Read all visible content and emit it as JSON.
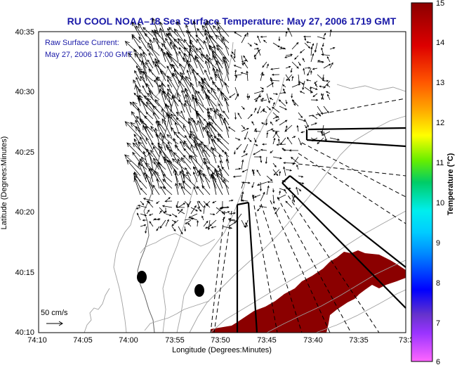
{
  "title": "RU COOL  NOAA–18  Sea Surface Temperature:  May 27, 2006 1719 GMT",
  "annotation": {
    "line1": "Raw Surface Current:",
    "line2": "May 27, 2006 17:00 GMT"
  },
  "x_axis": {
    "label": "Longitude (Degrees:Minutes)",
    "ticks": [
      "74:10",
      "74:05",
      "74:00",
      "73:55",
      "73:50",
      "73:45",
      "73:40",
      "73:35",
      "73:3"
    ]
  },
  "y_axis": {
    "label": "Latitude (Degrees:Minutes)",
    "ticks": [
      "40:35",
      "40:30",
      "40:25",
      "40:20",
      "40:15",
      "40:10"
    ]
  },
  "scale_label": "50 cm/s",
  "colorbar": {
    "label": "Temperature (°C)",
    "ticks": [
      "15",
      "14",
      "13",
      "12",
      "11",
      "10",
      "9",
      "8",
      "7",
      "6"
    ],
    "stops": [
      "#ff66ff",
      "#6633cc",
      "#0000ff",
      "#00aaff",
      "#00eeee",
      "#00cc66",
      "#66ee00",
      "#ffff00",
      "#ffaa00",
      "#ff5500",
      "#dd0000",
      "#8b0000"
    ]
  },
  "colors": {
    "sst_patch": "#8b0000",
    "contour": "#a0a0a0",
    "title": "#1a1aa8"
  }
}
